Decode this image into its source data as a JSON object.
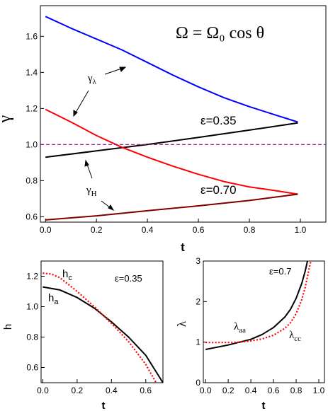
{
  "figure": {
    "colors": {
      "blue": "#0000ff",
      "red": "#ff0000",
      "black": "#000000",
      "darkred": "#800000",
      "magenta": "#990099"
    },
    "charts": [
      {
        "id": "main",
        "type": "line",
        "xlabel": "t",
        "ylabel": "γ",
        "xlim": [
          -0.02,
          1.1
        ],
        "ylim": [
          0.57,
          1.77
        ],
        "xticks": [
          0.0,
          0.2,
          0.4,
          0.6,
          0.8,
          1.0
        ],
        "xtick_labels": [
          "0.0",
          "0.2",
          "0.4",
          "0.6",
          "0.8",
          "1.0"
        ],
        "yticks": [
          0.6,
          0.8,
          1.0,
          1.2,
          1.4,
          1.6
        ],
        "ytick_labels": [
          "0.6",
          "0.8",
          "1.0",
          "1.2",
          "1.4",
          "1.6"
        ],
        "annotations": {
          "formula": "Ω = Ω₀ cos θ",
          "gamma_lambda": "γλ",
          "gamma_h": "γH",
          "eps1": "ε=0.35",
          "eps2": "ε=0.70"
        },
        "series": [
          {
            "color": "blue",
            "x": [
              0,
              0.1,
              0.2,
              0.3,
              0.4,
              0.5,
              0.6,
              0.7,
              0.8,
              0.9,
              0.99
            ],
            "y": [
              1.71,
              1.645,
              1.585,
              1.525,
              1.455,
              1.385,
              1.32,
              1.26,
              1.21,
              1.165,
              1.125
            ]
          },
          {
            "color": "black",
            "x": [
              0,
              0.2,
              0.4,
              0.6,
              0.8,
              0.99
            ],
            "y": [
              0.93,
              0.965,
              1.0,
              1.04,
              1.08,
              1.12
            ]
          },
          {
            "color": "red",
            "x": [
              0,
              0.1,
              0.2,
              0.3,
              0.4,
              0.5,
              0.6,
              0.7,
              0.8,
              0.9,
              0.99
            ],
            "y": [
              1.195,
              1.125,
              1.05,
              0.985,
              0.93,
              0.88,
              0.835,
              0.795,
              0.765,
              0.745,
              0.725
            ]
          },
          {
            "color": "darkred",
            "x": [
              0,
              0.2,
              0.4,
              0.6,
              0.8,
              0.99
            ],
            "y": [
              0.582,
              0.605,
              0.633,
              0.66,
              0.69,
              0.725
            ]
          },
          {
            "color": "magenta",
            "dashed": true,
            "x": [
              -0.02,
              1.1
            ],
            "y": [
              1.0,
              1.0
            ]
          }
        ]
      },
      {
        "id": "left",
        "type": "line",
        "xlabel": "t",
        "ylabel": "h",
        "xlim": [
          -0.01,
          0.7
        ],
        "ylim": [
          0.5,
          1.3
        ],
        "xticks": [
          0.0,
          0.2,
          0.4,
          0.6
        ],
        "xtick_labels": [
          "0.0",
          "0.2",
          "0.4",
          "0.6"
        ],
        "yticks": [
          0.6,
          0.8,
          1.0,
          1.2
        ],
        "ytick_labels": [
          "0.6",
          "0.8",
          "1.0",
          "1.2"
        ],
        "annotations": {
          "hc": "hc",
          "ha": "ha",
          "eps": "ε=0.35"
        },
        "series": [
          {
            "color": "black",
            "x": [
              0,
              0.1,
              0.2,
              0.3,
              0.4,
              0.5,
              0.6,
              0.7
            ],
            "y": [
              1.13,
              1.11,
              1.06,
              0.99,
              0.9,
              0.8,
              0.68,
              0.5
            ]
          },
          {
            "color": "red",
            "dotted": true,
            "x": [
              0,
              0.05,
              0.1,
              0.2,
              0.3,
              0.4,
              0.5,
              0.6,
              0.66
            ],
            "y": [
              1.22,
              1.215,
              1.19,
              1.1,
              1.0,
              0.89,
              0.77,
              0.62,
              0.5
            ]
          }
        ]
      },
      {
        "id": "right",
        "type": "line",
        "xlabel": "t",
        "ylabel": "λ",
        "xlim": [
          -0.02,
          1.05
        ],
        "ylim": [
          0,
          3
        ],
        "xticks": [
          0.0,
          0.2,
          0.4,
          0.6,
          0.8,
          1.0
        ],
        "xtick_labels": [
          "0.0",
          "0.2",
          "0.4",
          "0.6",
          "0.8",
          "1.0"
        ],
        "yticks": [
          0,
          1,
          2,
          3
        ],
        "ytick_labels": [
          "0",
          "1",
          "2",
          "3"
        ],
        "annotations": {
          "laa": "λaa",
          "lcc": "λcc",
          "eps": "ε=0.7"
        },
        "series": [
          {
            "color": "black",
            "x": [
              0,
              0.2,
              0.4,
              0.5,
              0.6,
              0.7,
              0.75,
              0.8,
              0.85,
              0.88,
              0.9
            ],
            "y": [
              0.82,
              0.93,
              1.07,
              1.19,
              1.36,
              1.62,
              1.81,
              2.08,
              2.45,
              2.75,
              3.0
            ]
          },
          {
            "color": "red",
            "dotted": true,
            "x": [
              0,
              0.2,
              0.3,
              0.4,
              0.5,
              0.6,
              0.7,
              0.75,
              0.8,
              0.85,
              0.88,
              0.91,
              0.93
            ],
            "y": [
              0.99,
              0.99,
              1.0,
              1.03,
              1.08,
              1.17,
              1.34,
              1.48,
              1.7,
              2.05,
              2.35,
              2.75,
              3.0
            ]
          }
        ]
      }
    ]
  }
}
